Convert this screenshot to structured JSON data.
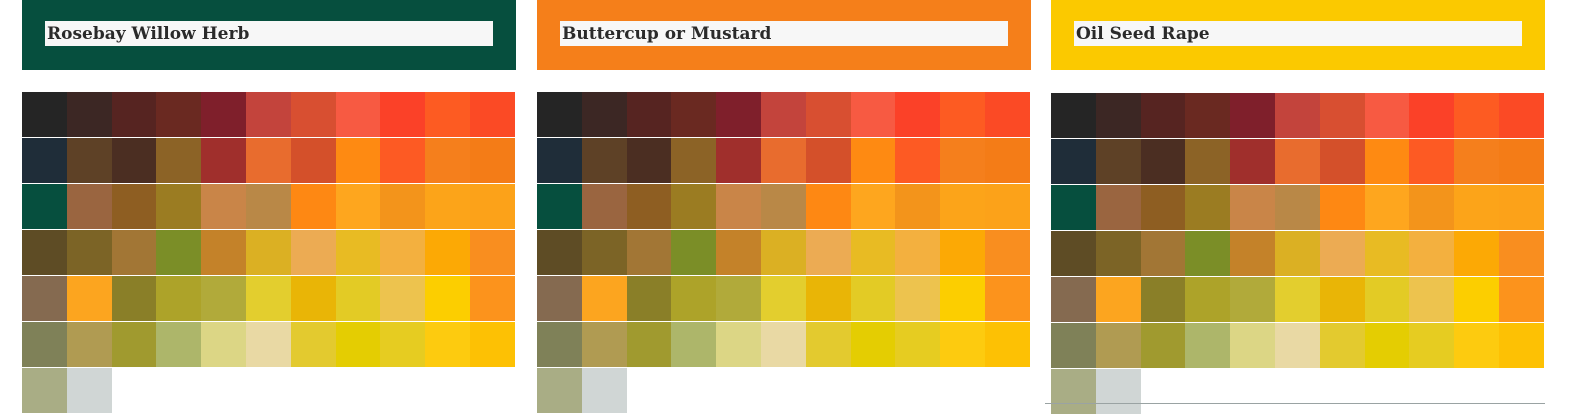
{
  "panels": [
    {
      "title": "Rosebay Willow Herb",
      "header_color": "#064f3e",
      "palette": [
        [
          "#252525",
          "#3c2724",
          "#562421",
          "#6a2921",
          "#7f1f2b",
          "#c3443c",
          "#d84f31",
          "#f75a42",
          "#fb4128",
          "#fd5b22",
          "#fb4a25"
        ],
        [
          "#1f2d39",
          "#5e4126",
          "#4b2e22",
          "#8c6326",
          "#a02f2c",
          "#e86c2e",
          "#d4502a",
          "#fe8a12",
          "#fd5a23",
          "#f57f1c",
          "#f47c17"
        ],
        [
          "#064f3e",
          "#9a6540",
          "#8e5e22",
          "#9b7c22",
          "#c98548",
          "#b98847",
          "#fe8813",
          "#fea61e",
          "#f3941b",
          "#fca419",
          "#fca219"
        ],
        [
          "#5e4c25",
          "#7c6426",
          "#a27635",
          "#7b8e27",
          "#c48229",
          "#dbb023",
          "#ecab53",
          "#e8bb23",
          "#f3b03f",
          "#fca905",
          "#f98e1f"
        ],
        [
          "#856a50",
          "#fca51f",
          "#8a7f28",
          "#ada329",
          "#b1aa3a",
          "#e3ce2e",
          "#e9b506",
          "#e3cb25",
          "#edc34e",
          "#fcce00",
          "#fc931c"
        ],
        [
          "#7f8158",
          "#b09b52",
          "#a09a2f",
          "#adb66a",
          "#dcd685",
          "#e9d9a4",
          "#e3ca2f",
          "#e4cd02",
          "#e6cc21",
          "#fdcb0f",
          "#fdc104"
        ],
        [
          "#a9ad85",
          "#d0d6d5"
        ]
      ]
    },
    {
      "title": "Buttercup or Mustard",
      "header_color": "#f57f1a",
      "palette": [
        [
          "#252525",
          "#3c2724",
          "#562421",
          "#6a2921",
          "#7f1f2b",
          "#c3443c",
          "#d84f31",
          "#f75a42",
          "#fb4128",
          "#fd5b22",
          "#fb4a25"
        ],
        [
          "#1f2d39",
          "#5e4126",
          "#4b2e22",
          "#8c6326",
          "#a02f2c",
          "#e86c2e",
          "#d4502a",
          "#fe8a12",
          "#fd5a23",
          "#f57f1c",
          "#f47c17"
        ],
        [
          "#064f3e",
          "#9a6540",
          "#8e5e22",
          "#9b7c22",
          "#c98548",
          "#b98847",
          "#fe8813",
          "#fea61e",
          "#f3941b",
          "#fca419",
          "#fca219"
        ],
        [
          "#5e4c25",
          "#7c6426",
          "#a27635",
          "#7b8e27",
          "#c48229",
          "#dbb023",
          "#ecab53",
          "#e8bb23",
          "#f3b03f",
          "#fca905",
          "#f98e1f"
        ],
        [
          "#856a50",
          "#fca51f",
          "#8a7f28",
          "#ada329",
          "#b1aa3a",
          "#e3ce2e",
          "#e9b506",
          "#e3cb25",
          "#edc34e",
          "#fcce00",
          "#fc931c"
        ],
        [
          "#7f8158",
          "#b09b52",
          "#a09a2f",
          "#adb66a",
          "#dcd685",
          "#e9d9a4",
          "#e3ca2f",
          "#e4cd02",
          "#e6cc21",
          "#fdcb0f",
          "#fdc104"
        ],
        [
          "#a9ad85",
          "#d0d6d5"
        ]
      ]
    },
    {
      "title": "Oil Seed Rape",
      "header_color": "#fbc900",
      "palette": [
        [
          "#252525",
          "#3c2724",
          "#562421",
          "#6a2921",
          "#7f1f2b",
          "#c3443c",
          "#d84f31",
          "#f75a42",
          "#fb4128",
          "#fd5b22",
          "#fb4a25"
        ],
        [
          "#1f2d39",
          "#5e4126",
          "#4b2e22",
          "#8c6326",
          "#a02f2c",
          "#e86c2e",
          "#d4502a",
          "#fe8a12",
          "#fd5a23",
          "#f57f1c",
          "#f47c17"
        ],
        [
          "#064f3e",
          "#9a6540",
          "#8e5e22",
          "#9b7c22",
          "#c98548",
          "#b98847",
          "#fe8813",
          "#fea61e",
          "#f3941b",
          "#fca419",
          "#fca219"
        ],
        [
          "#5e4c25",
          "#7c6426",
          "#a27635",
          "#7b8e27",
          "#c48229",
          "#dbb023",
          "#ecab53",
          "#e8bb23",
          "#f3b03f",
          "#fca905",
          "#f98e1f"
        ],
        [
          "#856a50",
          "#fca51f",
          "#8a7f28",
          "#ada329",
          "#b1aa3a",
          "#e3ce2e",
          "#e9b506",
          "#e3cb25",
          "#edc34e",
          "#fcce00",
          "#fc931c"
        ],
        [
          "#7f8158",
          "#b09b52",
          "#a09a2f",
          "#adb66a",
          "#dcd685",
          "#e9d9a4",
          "#e3ca2f",
          "#e4cd02",
          "#e6cc21",
          "#fdcb0f",
          "#fdc104"
        ],
        [
          "#a9ad85",
          "#d0d6d5"
        ]
      ]
    }
  ]
}
